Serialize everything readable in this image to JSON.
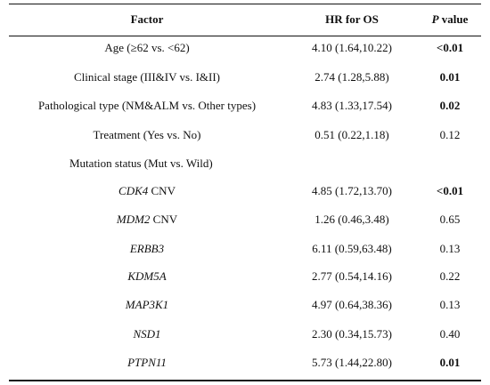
{
  "header": {
    "factor": "Factor",
    "hr": "HR for OS",
    "p_italic": "P",
    "p_rest": " value"
  },
  "rows": [
    {
      "factor": "Age (≥62 vs. <62)",
      "gene": "",
      "suffix": "",
      "hr": "4.10 (1.64,10.22)",
      "p": "<0.01",
      "p_bold": true
    },
    {
      "factor": "Clinical stage (III&IV vs. I&II)",
      "gene": "",
      "suffix": "",
      "hr": "2.74 (1.28,5.88)",
      "p": "0.01",
      "p_bold": true
    },
    {
      "factor": "Pathological type (NM&ALM vs. Other types)",
      "gene": "",
      "suffix": "",
      "hr": "4.83 (1.33,17.54)",
      "p": "0.02",
      "p_bold": true
    },
    {
      "factor": "Treatment (Yes vs. No)",
      "gene": "",
      "suffix": "",
      "hr": "0.51 (0.22,1.18)",
      "p": "0.12",
      "p_bold": false
    },
    {
      "factor": "Mutation status (Mut vs. Wild)",
      "gene": "",
      "suffix": "",
      "hr": "",
      "p": "",
      "p_bold": false,
      "left": true
    },
    {
      "factor": "",
      "gene": "CDK4",
      "suffix": " CNV",
      "hr": "4.85 (1.72,13.70)",
      "p": "<0.01",
      "p_bold": true
    },
    {
      "factor": "",
      "gene": "MDM2",
      "suffix": " CNV",
      "hr": "1.26 (0.46,3.48)",
      "p": "0.65",
      "p_bold": false
    },
    {
      "factor": "",
      "gene": "ERBB3",
      "suffix": "",
      "hr": "6.11 (0.59,63.48)",
      "p": "0.13",
      "p_bold": false
    },
    {
      "factor": "",
      "gene": "KDM5A",
      "suffix": "",
      "hr": "2.77 (0.54,14.16)",
      "p": "0.22",
      "p_bold": false
    },
    {
      "factor": "",
      "gene": "MAP3K1",
      "suffix": "",
      "hr": "4.97 (0.64,38.36)",
      "p": "0.13",
      "p_bold": false
    },
    {
      "factor": "",
      "gene": "NSD1",
      "suffix": "",
      "hr": "2.30 (0.34,15.73)",
      "p": "0.40",
      "p_bold": false
    },
    {
      "factor": "",
      "gene": "PTPN11",
      "suffix": "",
      "hr": "5.73 (1.44,22.80)",
      "p": "0.01",
      "p_bold": true
    }
  ]
}
